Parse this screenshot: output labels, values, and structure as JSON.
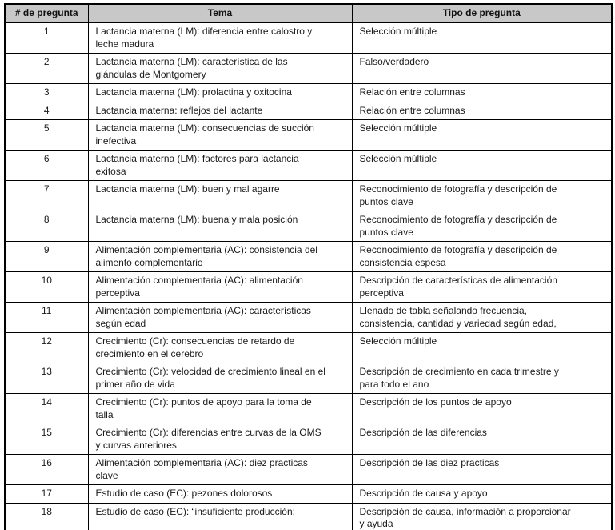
{
  "colors": {
    "header_background": "#c8c8c8",
    "table_border": "#000000",
    "text": "#1a1a1a"
  },
  "table": {
    "headers": [
      "# de pregunta",
      "Tema",
      "Tipo de pregunta"
    ],
    "rows": [
      {
        "num": "1",
        "tema": "Lactancia materna (LM): diferencia entre calostro y\nleche madura",
        "tipo": "Selección múltiple"
      },
      {
        "num": "2",
        "tema": "Lactancia materna (LM): característica de las\nglándulas de Montgomery",
        "tipo": "Falso/verdadero"
      },
      {
        "num": "3",
        "tema": "Lactancia materna (LM): prolactina y oxitocina",
        "tipo": "Relación entre columnas"
      },
      {
        "num": "4",
        "tema": "Lactancia materna: reflejos del lactante",
        "tipo": "Relación entre columnas"
      },
      {
        "num": "5",
        "tema": "Lactancia materna (LM): consecuencias de succión\ninefectiva",
        "tipo": "Selección múltiple"
      },
      {
        "num": "6",
        "tema": "Lactancia materna (LM): factores para lactancia\nexitosa",
        "tipo": "Selección múltiple"
      },
      {
        "num": "7",
        "tema": "Lactancia materna (LM): buen y mal agarre",
        "tipo": "Reconocimiento de fotografía y descripción de\npuntos clave"
      },
      {
        "num": "8",
        "tema": "Lactancia materna (LM): buena y mala posición",
        "tipo": "Reconocimiento de fotografía y descripción de\npuntos clave"
      },
      {
        "num": "9",
        "tema": "Alimentación complementaria (AC): consistencia del\nalimento complementario",
        "tipo": "Reconocimiento de fotografía y descripción de\nconsistencia espesa"
      },
      {
        "num": "10",
        "tema": "Alimentación complementaria (AC): alimentación\nperceptiva",
        "tipo": "Descripción de características de alimentación\nperceptiva"
      },
      {
        "num": "11",
        "tema": "Alimentación complementaria (AC): características\nsegún edad",
        "tipo": "Llenado de tabla señalando frecuencia,\nconsistencia, cantidad y variedad según edad,"
      },
      {
        "num": "12",
        "tema": "Crecimiento (Cr): consecuencias de retardo de\ncrecimiento en el cerebro",
        "tipo": "Selección múltiple"
      },
      {
        "num": "13",
        "tema": "Crecimiento (Cr): velocidad de crecimiento lineal en el\nprimer año de vida",
        "tipo": "Descripción de crecimiento en cada trimestre y\npara todo el ano"
      },
      {
        "num": "14",
        "tema": "Crecimiento (Cr): puntos de apoyo para la toma de\ntalla",
        "tipo": "Descripción de los puntos de apoyo"
      },
      {
        "num": "15",
        "tema": "Crecimiento (Cr): diferencias entre curvas de la OMS\ny curvas anteriores",
        "tipo": "Descripción de las diferencias"
      },
      {
        "num": "16",
        "tema": "Alimentación complementaria (AC): diez practicas\nclave",
        "tipo": "Descripción de las diez practicas"
      },
      {
        "num": "17",
        "tema": "Estudio de caso (EC): pezones dolorosos",
        "tipo": "Descripción de causa y apoyo"
      },
      {
        "num": "18",
        "tema": "Estudio de caso (EC): “insuficiente producción:",
        "tipo": "Descripción de causa, información a proporcionar\ny ayuda"
      }
    ]
  }
}
